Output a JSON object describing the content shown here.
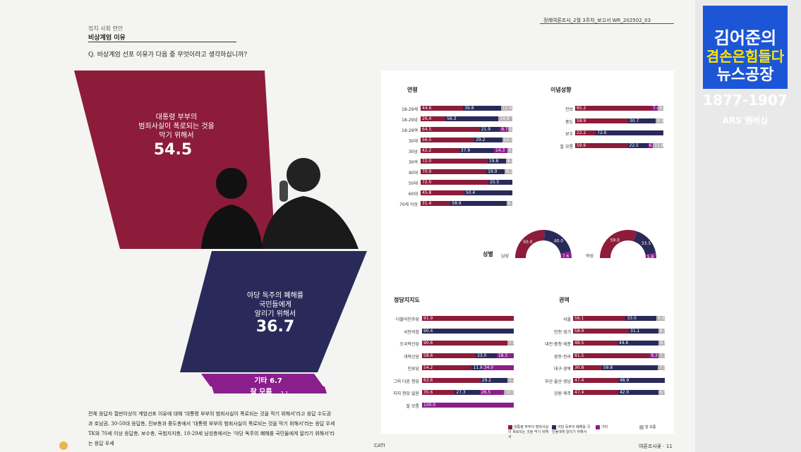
{
  "header": {
    "sub": "정치 사회 현안",
    "title": "비상계엄 이유",
    "question": "Q. 비상계엄 선포 이유가 다음 중 무엇이라고 생각하십니까?",
    "doc_id": "정례여론조사_2월 3주차_보고서   WR_202502_03"
  },
  "main": {
    "option1": {
      "label": "대통령 부부의\n범죄사실이 폭로되는 것을\n막기 위해서",
      "value": "54.5"
    },
    "option2": {
      "label": "야당 독주의 폐해를\n국민들에게\n알리기 위해서",
      "value": "36.7"
    },
    "etc": {
      "label": "기타 6.7"
    },
    "dk": {
      "label": "잘 모름",
      "value": "2.1"
    }
  },
  "colors": {
    "opt1": "#8c1c3a",
    "opt2": "#2a2a5a",
    "etc": "#8a1e8c",
    "dk": "#b9b0b4"
  },
  "age": {
    "title": "연령",
    "rows": [
      {
        "label": "18-29세",
        "v": [
          "44.6",
          "39.8",
          "",
          "11.9"
        ]
      },
      {
        "label": "18-29남",
        "v": [
          "26.4",
          "56.3",
          "",
          "14.8"
        ]
      },
      {
        "label": "18-29여",
        "v": [
          "64.5",
          "21.9",
          "8.7",
          "5.0"
        ]
      },
      {
        "label": "30대",
        "v": [
          "56.5",
          "29.2",
          "",
          "10.7"
        ]
      },
      {
        "label": "30남",
        "v": [
          "42.2",
          "37.9",
          "14.3",
          "5.7"
        ]
      },
      {
        "label": "30여",
        "v": [
          "72.0",
          "19.8",
          "",
          "6.8"
        ]
      },
      {
        "label": "40대",
        "v": [
          "70.9",
          "19.9",
          "",
          "8.2"
        ]
      },
      {
        "label": "50대",
        "v": [
          "72.0",
          "25.5",
          "",
          ""
        ]
      },
      {
        "label": "60대",
        "v": [
          "45.8",
          "50.4",
          "",
          ""
        ]
      },
      {
        "label": "70세 이상",
        "v": [
          "31.4",
          "58.9",
          "",
          "6.3"
        ]
      }
    ]
  },
  "ideology": {
    "title": "이념성향",
    "rows": [
      {
        "label": "진보",
        "v": [
          "85.2",
          "",
          "7.4",
          "6.1"
        ]
      },
      {
        "label": "중도",
        "v": [
          "58.9",
          "30.7",
          "",
          "8.5"
        ]
      },
      {
        "label": "보수",
        "v": [
          "22.2",
          "72.6",
          "",
          ""
        ]
      },
      {
        "label": "잘 모름",
        "v": [
          "59.6",
          "22.5",
          "6.1",
          "11.8"
        ]
      }
    ]
  },
  "gender": {
    "title": "성별",
    "male": {
      "label": "남성",
      "v": [
        "50.0",
        "40.0",
        "7.6"
      ]
    },
    "female": {
      "label": "여성",
      "v": [
        "59.0",
        "33.5",
        "5.8"
      ]
    }
  },
  "party": {
    "title": "정당지지도",
    "rows": [
      {
        "label": "더불어민주당",
        "v": [
          "91.9",
          "",
          "",
          ""
        ]
      },
      {
        "label": "국민의힘",
        "v": [
          "",
          "90.4",
          "",
          ""
        ]
      },
      {
        "label": "조국혁신당",
        "v": [
          "90.6",
          "",
          "",
          "7.0"
        ]
      },
      {
        "label": "개혁신당",
        "v": [
          "58.6",
          "23.0",
          "18.5",
          ""
        ]
      },
      {
        "label": "진보당",
        "v": [
          "54.2",
          "11.8",
          "34.0",
          ""
        ]
      },
      {
        "label": "그외 다른 정당",
        "v": [
          "63.6",
          "29.2",
          "",
          "7.2"
        ]
      },
      {
        "label": "지지 정당 없음",
        "v": [
          "35.6",
          "27.3",
          "26.5",
          "10.5"
        ]
      },
      {
        "label": "잘 모름",
        "v": [
          "",
          "",
          "100.0",
          ""
        ]
      }
    ]
  },
  "region": {
    "title": "권역",
    "rows": [
      {
        "label": "서울",
        "v": [
          "56.1",
          "33.0",
          "",
          "8.8"
        ]
      },
      {
        "label": "인천·경기",
        "v": [
          "58.9",
          "31.1",
          "",
          "6.9"
        ]
      },
      {
        "label": "대전·충청·세종",
        "v": [
          "48.5",
          "44.6",
          "",
          "6.9"
        ]
      },
      {
        "label": "광주·전라",
        "v": [
          "81.5",
          "",
          "9.3",
          "7.1"
        ]
      },
      {
        "label": "대구·경북",
        "v": [
          "30.8",
          "59.8",
          "",
          "7.5"
        ]
      },
      {
        "label": "부산·울산·경남",
        "v": [
          "47.4",
          "48.9",
          "",
          ""
        ]
      },
      {
        "label": "강원·제주",
        "v": [
          "47.4",
          "42.0",
          "",
          "6.9"
        ]
      }
    ]
  },
  "legend": [
    "대통령 부부의 범죄사실이 폭로되는 것을 막기 위해서",
    "야당 독주의 폐해를 국민들에게 알리기 위해서",
    "기타",
    "잘 모름"
  ],
  "footer": {
    "text": "전체 응답자 절반이상이 계엄선포 이유에 대해 '대통령 부부의 범죄사실이 폭로되는 것을 막기 위해서'라고 응답 수도권과 호남권, 30-50대 응답층, 진보층과 중도층에서 '대통령 부부의 범죄사실이 폭로되는 것을 막기 위해서'라는 응답 우세 TK와 70세 이상 응답층, 보수층, 국힘지지층, 18-29세 남성층에서는 '야당 독주의 폐해를 국민들에게 알리기 위해서'라는 응답 우세",
    "cati": "CATI",
    "page": "여론조사꽃 · 11"
  },
  "overlay": {
    "line1": "김어준의",
    "line2": "겸손은힘들다",
    "line3": "뉴스공장",
    "phone": "1877-1907",
    "ars": "ARS 멤버십"
  }
}
